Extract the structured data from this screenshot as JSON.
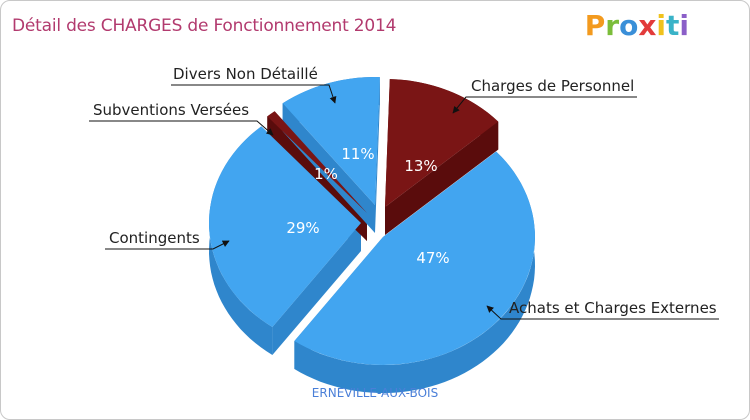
{
  "header": {
    "title": "Détail des CHARGES de Fonctionnement 2014",
    "logo_text": "Proxiti",
    "logo_letters": [
      {
        "ch": "P",
        "color": "#f39a1e"
      },
      {
        "ch": "r",
        "color": "#7bbd3a"
      },
      {
        "ch": "o",
        "color": "#3a8fd8"
      },
      {
        "ch": "x",
        "color": "#e23b3b"
      },
      {
        "ch": "i",
        "color": "#f0c21c"
      },
      {
        "ch": "t",
        "color": "#3ab3c8"
      },
      {
        "ch": "i",
        "color": "#8b5fc8"
      }
    ]
  },
  "footer": {
    "location": "ERNEVILLE-AUX-BOIS"
  },
  "chart_data": {
    "type": "pie",
    "title": "Détail des CHARGES de Fonctionnement 2014",
    "legend": "none",
    "slices": [
      {
        "label": "Charges de Personnel",
        "value": 13,
        "pct_label": "13%",
        "color": "#7a1515",
        "side": "#5a0c0c"
      },
      {
        "label": "Achats et Charges Externes",
        "value": 47,
        "pct_label": "47%",
        "color": "#42a5f0",
        "side": "#2f86cc"
      },
      {
        "label": "Contingents",
        "value": 29,
        "pct_label": "29%",
        "color": "#42a5f0",
        "side": "#2f86cc"
      },
      {
        "label": "Subventions Versées",
        "value": 1,
        "pct_label": "1%",
        "color": "#7a1515",
        "side": "#5a0c0c"
      },
      {
        "label": "Divers Non Détaillé",
        "value": 11,
        "pct_label": "11%",
        "color": "#42a5f0",
        "side": "#2f86cc"
      }
    ]
  }
}
